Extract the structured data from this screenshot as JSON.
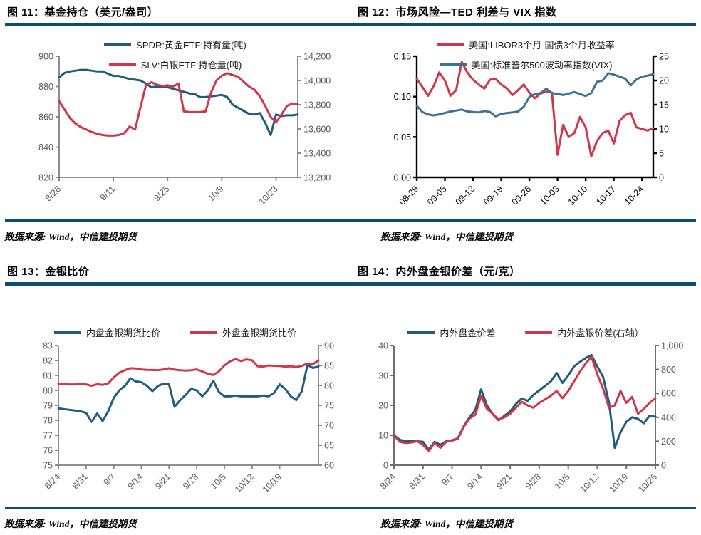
{
  "source_note": "数据来源: Wind，中信建投期货",
  "colors": {
    "divider_bar": "#0c4c78",
    "blue_line": "#1f5c7d",
    "red_line": "#d0374b",
    "vix_blue_line": "#3f6f93"
  },
  "chart_data": [
    {
      "id": "fig11",
      "type": "line",
      "title": "图 11：基金持仓（美元/盎司）",
      "x_labels": [
        "8/28",
        "9/11",
        "9/25",
        "10/9",
        "10/23"
      ],
      "x_tick_indices": [
        0,
        10,
        20,
        30,
        40
      ],
      "n_points": 45,
      "left_axis": {
        "min": 820,
        "max": 900,
        "labels": [
          "900",
          "880",
          "860",
          "840",
          "820"
        ]
      },
      "right_axis": {
        "min": 13200,
        "max": 14200,
        "labels": [
          "14,200",
          "14,000",
          "13,800",
          "13,600",
          "13,400",
          "13,200"
        ]
      },
      "axis_color": "#7f7f7f",
      "tick_label_color": "#595959",
      "series": [
        {
          "name": "SPDR:黄金ETF:持有量(吨)",
          "color": "#1f5c7d",
          "axis": "left",
          "values": [
            886,
            889,
            890,
            890.5,
            891,
            891,
            890.5,
            890,
            890,
            888.5,
            887,
            887,
            886,
            885,
            884.5,
            884,
            882,
            879.5,
            880,
            880,
            879.5,
            878.5,
            877.5,
            876.5,
            875.5,
            875,
            873,
            873,
            873.5,
            874,
            874.5,
            873,
            868,
            866,
            864,
            862,
            861.5,
            862.5,
            856,
            848,
            861.5,
            860.5,
            861,
            861,
            861.5
          ]
        },
        {
          "name": "SLV:白银ETF:持仓量(吨)",
          "color": "#d0374b",
          "axis": "right",
          "values": [
            13830,
            13760,
            13690,
            13645,
            13615,
            13595,
            13575,
            13560,
            13550,
            13545,
            13545,
            13550,
            13565,
            13620,
            13595,
            13780,
            13960,
            13985,
            13965,
            13955,
            13960,
            13950,
            13975,
            13745,
            13740,
            13738,
            13740,
            13745,
            13900,
            14000,
            14040,
            14060,
            14045,
            14030,
            13990,
            13950,
            13925,
            13870,
            13790,
            13700,
            13655,
            13720,
            13790,
            13810,
            13805
          ]
        }
      ]
    },
    {
      "id": "fig12",
      "type": "line",
      "title": "图 12：市场风险—TED 利差与 VIX 指数",
      "x_labels": [
        "08-29",
        "09-05",
        "09-12",
        "09-19",
        "09-26",
        "10-03",
        "10-10",
        "10-17",
        "10-24"
      ],
      "x_tick_indices": [
        0,
        5,
        10,
        15,
        20,
        25,
        30,
        35,
        40
      ],
      "n_points": 43,
      "left_axis": {
        "min": 0,
        "max": 0.15,
        "labels": [
          "0.15",
          "0.10",
          "0.05",
          "0.00"
        ]
      },
      "right_axis": {
        "min": 0,
        "max": 25,
        "labels": [
          "25",
          "20",
          "15",
          "10",
          "5",
          "0"
        ]
      },
      "axis_color": "#000000",
      "tick_label_color": "#000000",
      "series": [
        {
          "name": "美国:LIBOR3个月-国债3个月收益率",
          "color": "#d0374b",
          "axis": "left",
          "values": [
            0.122,
            0.112,
            0.101,
            0.113,
            0.13,
            0.12,
            0.101,
            0.108,
            0.143,
            0.13,
            0.121,
            0.115,
            0.11,
            0.121,
            0.122,
            0.115,
            0.11,
            0.102,
            0.108,
            0.115,
            0.105,
            0.098,
            0.104,
            0.106,
            0.105,
            0.028,
            0.065,
            0.05,
            0.055,
            0.075,
            0.062,
            0.026,
            0.045,
            0.055,
            0.058,
            0.042,
            0.07,
            0.077,
            0.08,
            0.062,
            0.06,
            0.058,
            0.061
          ]
        },
        {
          "name": "美国:标准普尔500波动率指数(VIX)",
          "color": "#3f6f93",
          "axis": "right",
          "values": [
            14.8,
            13.5,
            13.0,
            12.8,
            13.0,
            13.3,
            13.6,
            13.8,
            14.0,
            13.6,
            13.5,
            13.4,
            13.7,
            13.5,
            12.6,
            13.1,
            13.3,
            13.4,
            13.6,
            14.6,
            16.6,
            17.2,
            17.4,
            18.3,
            17.4,
            17.2,
            17.0,
            17.3,
            17.6,
            17.2,
            16.8,
            17.4,
            19.7,
            20.0,
            21.5,
            21.2,
            20.8,
            20.4,
            19.0,
            20.2,
            20.8,
            21.0,
            21.3
          ]
        }
      ]
    },
    {
      "id": "fig13",
      "type": "line",
      "title": "图 13：金银比价",
      "x_labels": [
        "8/24",
        "8/31",
        "9/7",
        "9/14",
        "9/21",
        "9/28",
        "10/5",
        "10/12",
        "10/19"
      ],
      "x_tick_indices": [
        0,
        5,
        10,
        15,
        20,
        25,
        30,
        35,
        40
      ],
      "n_points": 48,
      "left_axis": {
        "min": 75,
        "max": 83,
        "labels": [
          "83",
          "82",
          "81",
          "80",
          "79",
          "78",
          "77",
          "76",
          "75"
        ]
      },
      "right_axis": {
        "min": 60,
        "max": 90,
        "labels": [
          "90",
          "85",
          "80",
          "75",
          "70",
          "65",
          "60"
        ]
      },
      "axis_color": "#7f7f7f",
      "tick_label_color": "#595959",
      "series": [
        {
          "name": "内盘金银期货比价",
          "color": "#1f5c7d",
          "axis": "left",
          "values": [
            78.8,
            78.75,
            78.7,
            78.65,
            78.6,
            78.5,
            77.9,
            78.45,
            77.95,
            78.6,
            79.5,
            80.0,
            80.3,
            80.8,
            80.6,
            80.55,
            80.3,
            79.95,
            80.3,
            80.45,
            80.4,
            78.9,
            79.35,
            79.7,
            80.1,
            80.0,
            79.6,
            80.0,
            80.65,
            79.9,
            79.6,
            79.6,
            79.65,
            79.6,
            79.6,
            79.6,
            79.6,
            79.65,
            79.6,
            79.85,
            80.4,
            80.1,
            79.6,
            79.35,
            79.95,
            81.7,
            81.5,
            81.6
          ]
        },
        {
          "name": "外盘金银期货比价",
          "color": "#d0374b",
          "axis": "right",
          "values": [
            80.4,
            80.35,
            80.25,
            80.25,
            80.3,
            80.25,
            79.9,
            80.3,
            80.15,
            80.5,
            82.0,
            83.2,
            83.8,
            84.3,
            84.25,
            84.0,
            83.9,
            83.85,
            83.8,
            84.0,
            84.3,
            83.95,
            83.8,
            83.7,
            83.8,
            84.0,
            83.5,
            82.9,
            82.6,
            83.5,
            85.0,
            86.0,
            86.6,
            86.1,
            86.5,
            86.3,
            84.8,
            84.7,
            85.0,
            84.9,
            84.85,
            84.7,
            84.8,
            84.6,
            84.9,
            85.5,
            85.3,
            86.3
          ]
        }
      ]
    },
    {
      "id": "fig14",
      "type": "line",
      "title": "图 14：内外盘金银价差（元/克）",
      "x_labels": [
        "8/24",
        "8/31",
        "9/7",
        "9/14",
        "9/21",
        "9/28",
        "10/5",
        "10/12",
        "10/19",
        "10/26"
      ],
      "x_tick_indices": [
        0,
        5,
        10,
        15,
        20,
        25,
        30,
        35,
        40,
        45
      ],
      "n_points": 46,
      "left_axis": {
        "min": 0,
        "max": 40,
        "labels": [
          "40",
          "30",
          "20",
          "10",
          "0"
        ]
      },
      "right_axis": {
        "min": 0,
        "max": 1000,
        "labels": [
          "1,000",
          "800",
          "600",
          "400",
          "200",
          "0"
        ]
      },
      "axis_color": "#6e6e6e",
      "tick_label_color": "#595959",
      "series": [
        {
          "name": "内外盘金价差",
          "color": "#1f5c7d",
          "axis": "left",
          "values": [
            10,
            8.5,
            8,
            8,
            8,
            7.8,
            5.2,
            7.8,
            6.8,
            8,
            8.3,
            9,
            13,
            16,
            18.4,
            25.3,
            20,
            17,
            15,
            16.5,
            18,
            20.5,
            22.3,
            21.5,
            23.5,
            25,
            26.5,
            28,
            30.8,
            27.5,
            30,
            33,
            34.5,
            35.8,
            36.8,
            33,
            29.5,
            21,
            5.8,
            11,
            14.5,
            16,
            15.5,
            14,
            16.5,
            16.2
          ]
        },
        {
          "name": "内外盘银价差(右轴）",
          "color": "#d0374b",
          "axis": "right",
          "values": [
            250,
            195,
            185,
            190,
            200,
            170,
            120,
            185,
            145,
            195,
            205,
            220,
            320,
            390,
            420,
            580,
            470,
            430,
            380,
            400,
            430,
            480,
            530,
            500,
            480,
            520,
            550,
            580,
            620,
            560,
            620,
            700,
            780,
            850,
            905,
            760,
            640,
            480,
            500,
            620,
            520,
            570,
            430,
            470,
            520,
            560
          ]
        }
      ]
    }
  ]
}
